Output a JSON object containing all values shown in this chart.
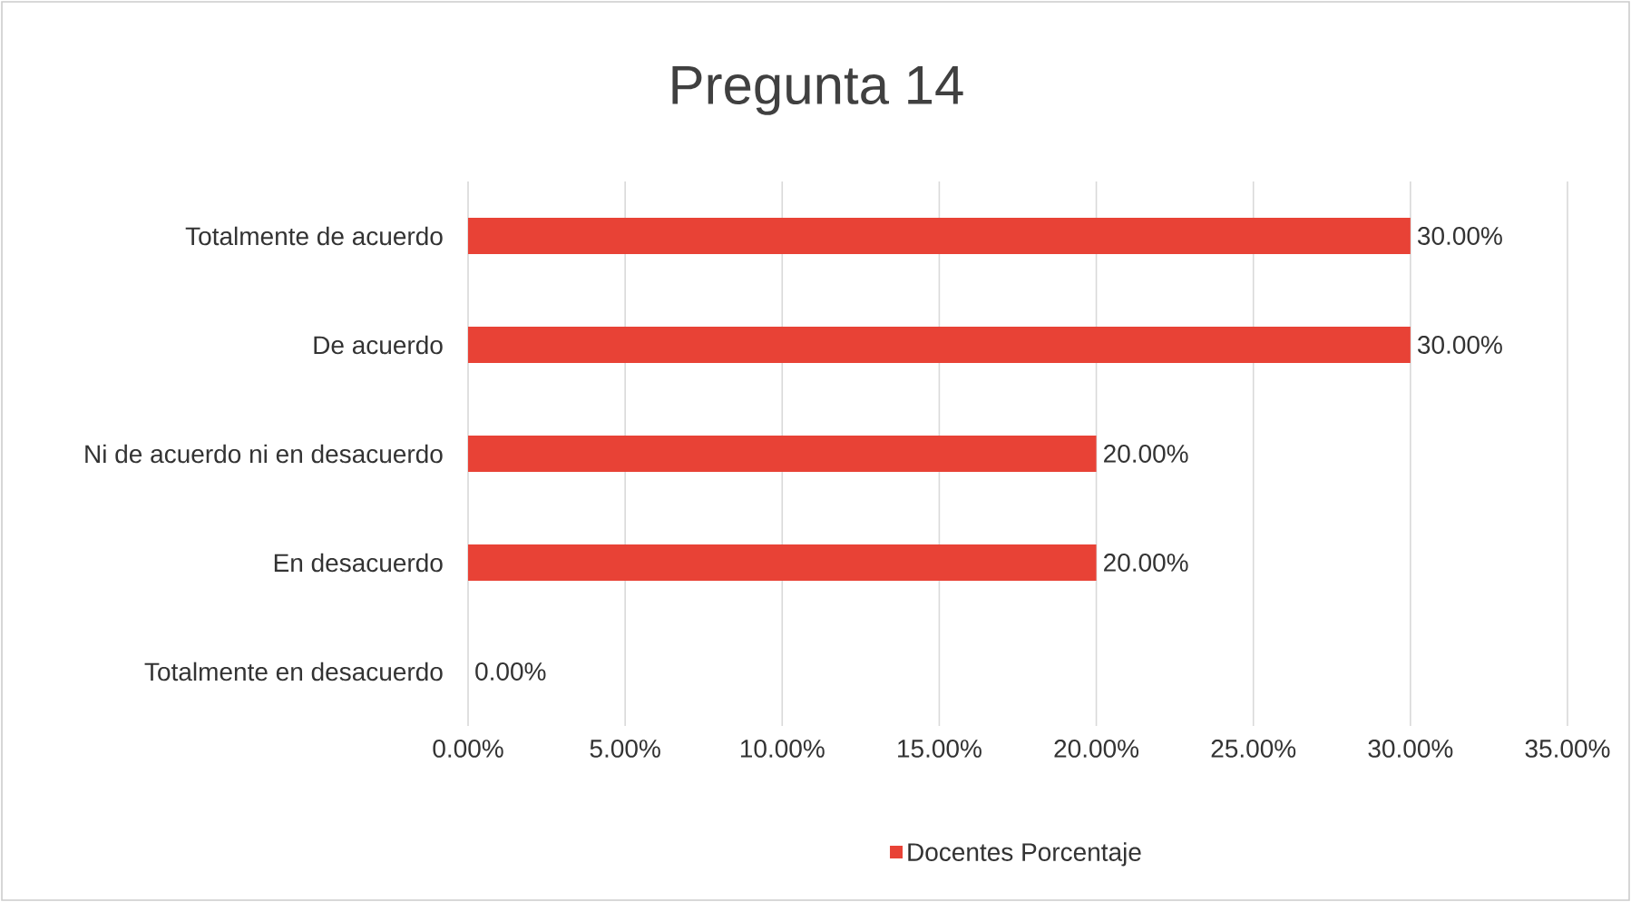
{
  "chart_data": {
    "type": "bar",
    "orientation": "horizontal",
    "title": "Pregunta 14",
    "categories": [
      "Totalmente de acuerdo",
      "De acuerdo",
      "Ni de acuerdo ni en desacuerdo",
      "En desacuerdo",
      "Totalmente en desacuerdo"
    ],
    "series": [
      {
        "name": "Docentes Porcentaje",
        "color": "#e84236",
        "values": [
          30,
          30,
          20,
          20,
          0
        ],
        "value_labels": [
          "30.00%",
          "30.00%",
          "20.00%",
          "20.00%",
          "0.00%"
        ]
      }
    ],
    "xlim": [
      0,
      35
    ],
    "xticks": [
      {
        "value": 0,
        "label": "0.00%"
      },
      {
        "value": 5,
        "label": "5.00%"
      },
      {
        "value": 10,
        "label": "10.00%"
      },
      {
        "value": 15,
        "label": "15.00%"
      },
      {
        "value": 20,
        "label": "20.00%"
      },
      {
        "value": 25,
        "label": "25.00%"
      },
      {
        "value": 30,
        "label": "30.00%"
      },
      {
        "value": 35,
        "label": "35.00%"
      }
    ],
    "grid": "x",
    "legend": "bottom"
  }
}
